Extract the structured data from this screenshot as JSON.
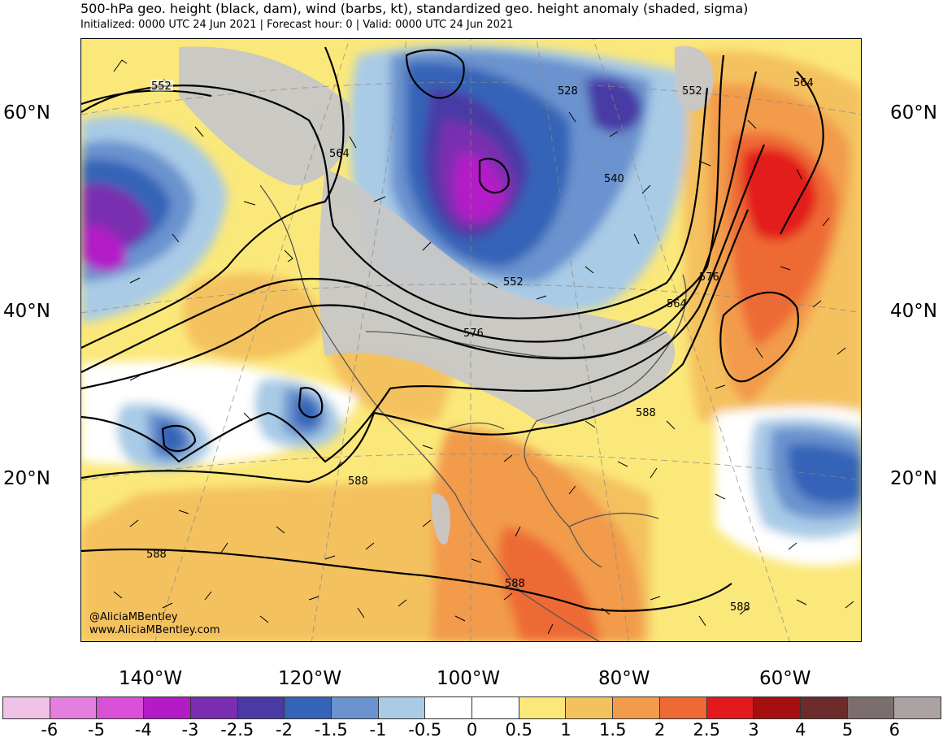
{
  "title": "500-hPa geo. height (black, dam), wind (barbs, kt), standardized geo. height anomaly (shaded, sigma)",
  "subtitle": "Initialized: 0000 UTC 24 Jun 2021 | Forecast hour: 0 | Valid: 0000 UTC 24 Jun 2021",
  "lat_labels": [
    "60°N",
    "40°N",
    "20°N"
  ],
  "lon_labels": [
    "140°W",
    "120°W",
    "100°W",
    "80°W",
    "60°W"
  ],
  "contour_labels": [
    "552",
    "528",
    "552",
    "564",
    "540",
    "564",
    "552",
    "576",
    "564",
    "576",
    "588",
    "588",
    "588",
    "588",
    "588"
  ],
  "credits": {
    "handle": "@AliciaMBentley",
    "website": "www.AliciaMBentley.com"
  },
  "colorbar": {
    "tick_labels": [
      "-6",
      "-5",
      "-4",
      "-3",
      "-2.5",
      "-2",
      "-1.5",
      "-1",
      "-0.5",
      "0",
      "0.5",
      "1",
      "1.5",
      "2",
      "2.5",
      "3",
      "4",
      "5",
      "6"
    ],
    "colors": [
      "#f0c2e8",
      "#e57fdf",
      "#d94fd6",
      "#b31bc7",
      "#7a2db0",
      "#4a3aa6",
      "#3563b7",
      "#6b93cf",
      "#a9cbe6",
      "#ffffff",
      "#ffffff",
      "#fbe87a",
      "#f4c15f",
      "#f29b4c",
      "#ee6a35",
      "#e31a1c",
      "#a50f0f",
      "#6e2b2b",
      "#7d6e6e",
      "#aca2a2"
    ]
  },
  "land_color": "#c7c7c7",
  "ocean_color": "#ffffff"
}
